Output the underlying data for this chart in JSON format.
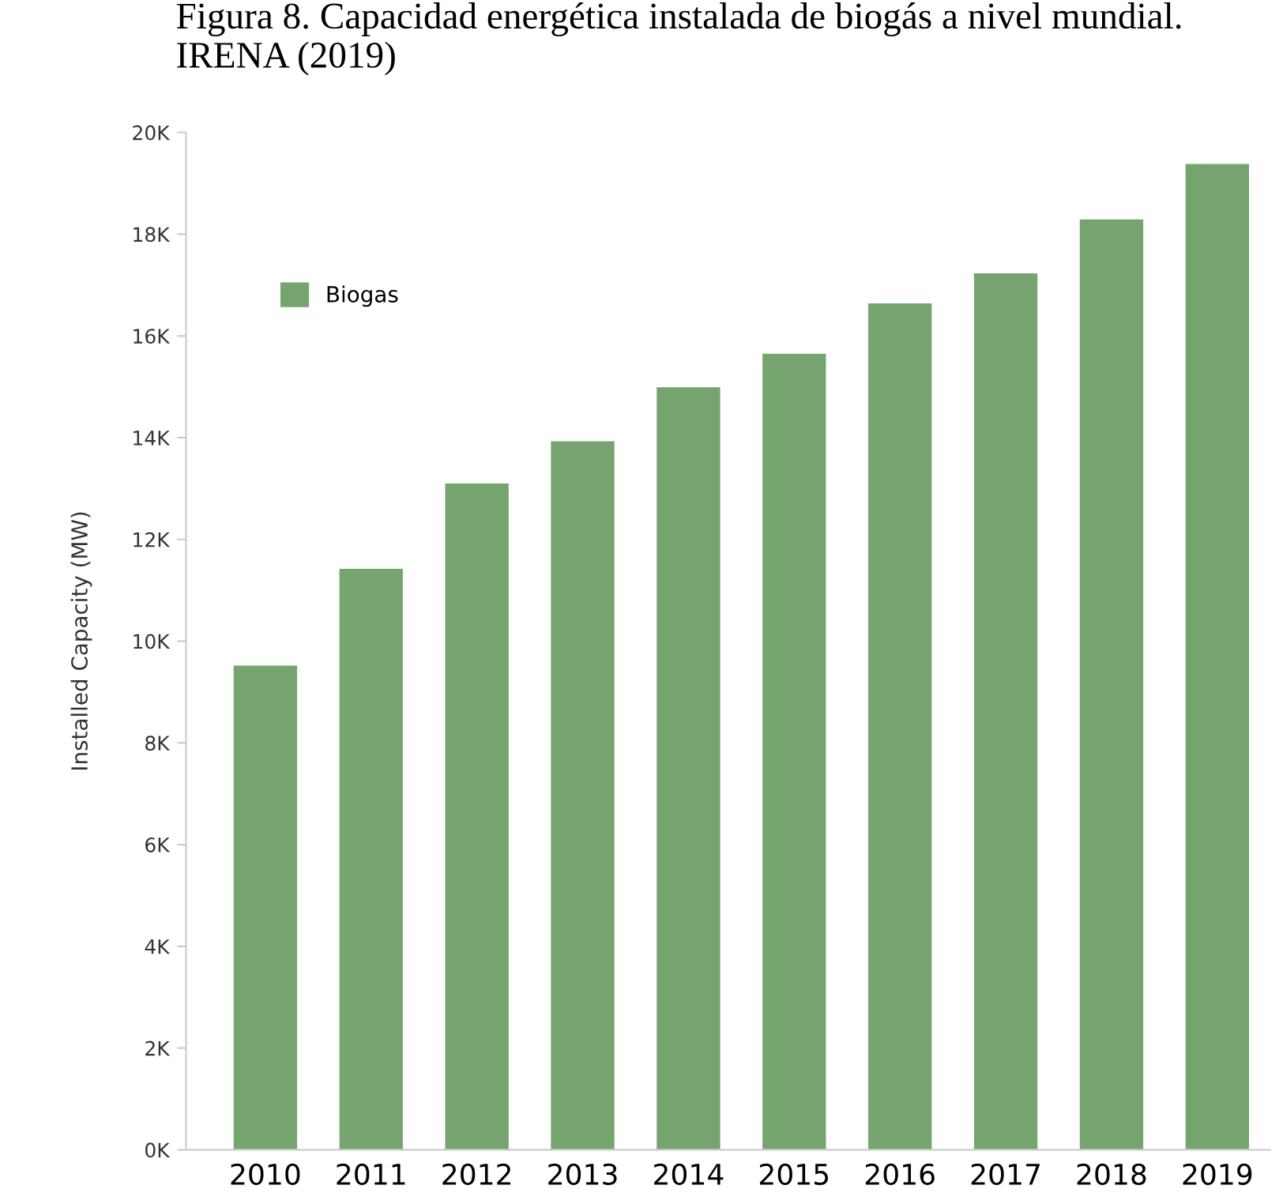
{
  "chart_data": {
    "type": "bar",
    "title": "Figura 8. Capacidad energética instalada de biogás a nivel mundial.\nIRENA (2019)",
    "ylabel": "Installed Capacity (MW)",
    "categories": [
      "2010",
      "2011",
      "2012",
      "2013",
      "2014",
      "2015",
      "2016",
      "2017",
      "2018",
      "2019"
    ],
    "series": [
      {
        "name": "Biogas",
        "color": "#76a46f",
        "values": [
          9520,
          11420,
          13100,
          13930,
          14990,
          15650,
          16640,
          17230,
          18290,
          19380
        ]
      }
    ],
    "ylim": [
      0,
      20000
    ],
    "yticks": [
      {
        "value": 0,
        "label": "0K"
      },
      {
        "value": 2000,
        "label": "2K"
      },
      {
        "value": 4000,
        "label": "4K"
      },
      {
        "value": 6000,
        "label": "6K"
      },
      {
        "value": 8000,
        "label": "8K"
      },
      {
        "value": 10000,
        "label": "10K"
      },
      {
        "value": 12000,
        "label": "12K"
      },
      {
        "value": 14000,
        "label": "14K"
      },
      {
        "value": 16000,
        "label": "16K"
      },
      {
        "value": 18000,
        "label": "18K"
      },
      {
        "value": 20000,
        "label": "20K"
      }
    ],
    "grid": false,
    "legend": "top left"
  }
}
